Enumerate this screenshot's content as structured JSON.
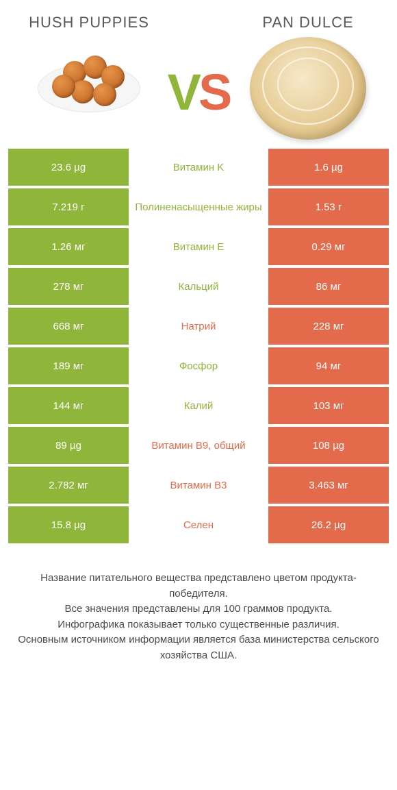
{
  "colors": {
    "green": "#8fb53a",
    "orange": "#e36a4a",
    "background": "#ffffff",
    "text": "#333333",
    "footer_text": "#4a4a4a"
  },
  "header": {
    "left_title": "HUSH PUPPIES",
    "right_title": "PAN DULCE",
    "vs_v": "V",
    "vs_s": "S"
  },
  "rows": [
    {
      "left": "23.6 µg",
      "label": "Витамин K",
      "right": "1.6 µg",
      "winner": "left"
    },
    {
      "left": "7.219 г",
      "label": "Полиненасыщенные жиры",
      "right": "1.53 г",
      "winner": "left"
    },
    {
      "left": "1.26 мг",
      "label": "Витамин E",
      "right": "0.29 мг",
      "winner": "left"
    },
    {
      "left": "278 мг",
      "label": "Кальций",
      "right": "86 мг",
      "winner": "left"
    },
    {
      "left": "668 мг",
      "label": "Натрий",
      "right": "228 мг",
      "winner": "right"
    },
    {
      "left": "189 мг",
      "label": "Фосфор",
      "right": "94 мг",
      "winner": "left"
    },
    {
      "left": "144 мг",
      "label": "Калий",
      "right": "103 мг",
      "winner": "left"
    },
    {
      "left": "89 µg",
      "label": "Витамин B9, общий",
      "right": "108 µg",
      "winner": "right"
    },
    {
      "left": "2.782 мг",
      "label": "Витамин B3",
      "right": "3.463 мг",
      "winner": "right"
    },
    {
      "left": "15.8 µg",
      "label": "Селен",
      "right": "26.2 µg",
      "winner": "right"
    }
  ],
  "footer": {
    "line1": "Название питательного вещества представлено цветом продукта-победителя.",
    "line2": "Все значения представлены для 100 граммов продукта.",
    "line3": "Инфографика показывает только существенные различия.",
    "line4": "Основным источником информации является база министерства сельского хозяйства США."
  }
}
